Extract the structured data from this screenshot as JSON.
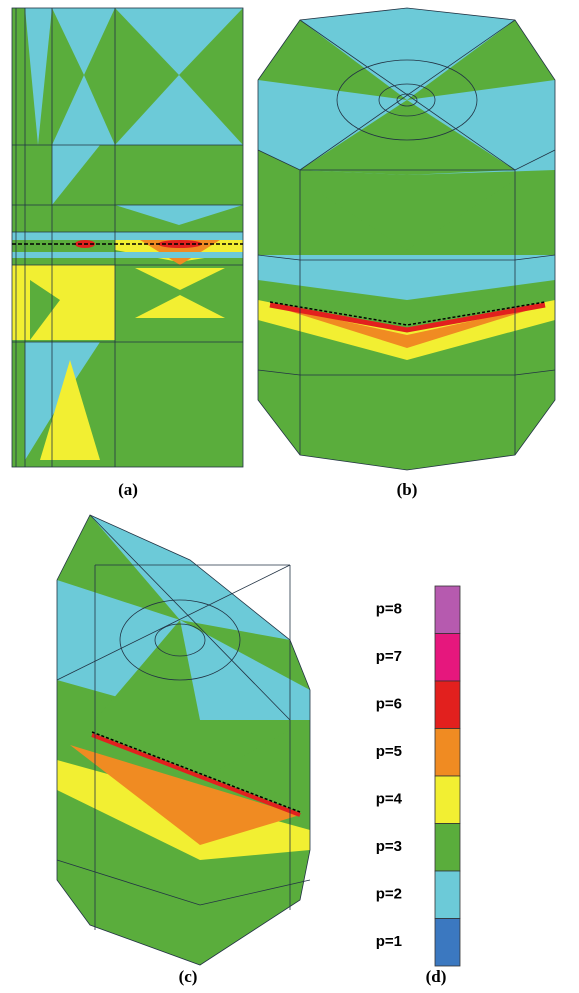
{
  "panels": [
    {
      "label": "(a)"
    },
    {
      "label": "(b)"
    },
    {
      "label": "(c)"
    },
    {
      "label": "(d)"
    }
  ],
  "legend": {
    "entries": [
      {
        "label": "p=8",
        "color": "#b65aaf"
      },
      {
        "label": "p=7",
        "color": "#e6177d"
      },
      {
        "label": "p=6",
        "color": "#e2201e"
      },
      {
        "label": "p=5",
        "color": "#f08b22"
      },
      {
        "label": "p=4",
        "color": "#f2ef32"
      },
      {
        "label": "p=3",
        "color": "#5aad3c"
      },
      {
        "label": "p=2",
        "color": "#6ccad8"
      },
      {
        "label": "p=1",
        "color": "#3b78c0"
      }
    ]
  }
}
